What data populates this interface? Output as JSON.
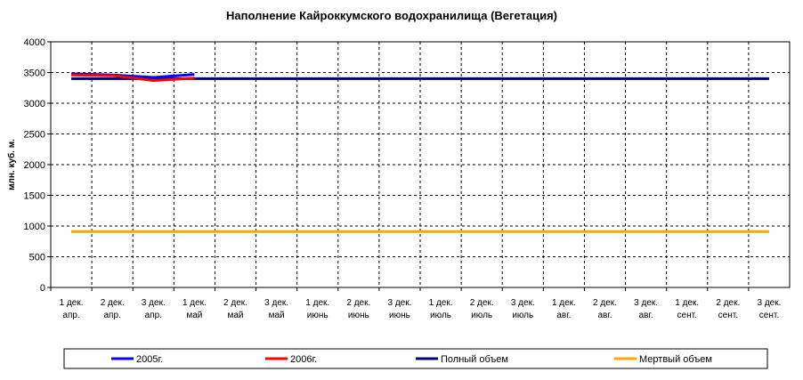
{
  "chart_data": {
    "type": "line",
    "title": "Наполнение Кайроккумского водохранилища (Вегетация)",
    "y_label": "млн. куб. м.",
    "categories": [
      [
        "1 дек.",
        "апр."
      ],
      [
        "2 дек.",
        "апр."
      ],
      [
        "3 дек.",
        "апр."
      ],
      [
        "1 дек.",
        "май"
      ],
      [
        "2 дек.",
        "май"
      ],
      [
        "3 дек.",
        "май"
      ],
      [
        "1 дек.",
        "июнь"
      ],
      [
        "2 дек.",
        "июнь"
      ],
      [
        "3 дек.",
        "июнь"
      ],
      [
        "1 дек.",
        "июль"
      ],
      [
        "2 дек.",
        "июль"
      ],
      [
        "3 дек.",
        "июль"
      ],
      [
        "1 дек.",
        "авг."
      ],
      [
        "2 дек.",
        "авг."
      ],
      [
        "3 дек.",
        "авг."
      ],
      [
        "1 дек.",
        "сент."
      ],
      [
        "2 дек.",
        "сент."
      ],
      [
        "3 дек.",
        "сент."
      ]
    ],
    "series": [
      {
        "name": "2005г.",
        "color": "#0000ff",
        "values": [
          3480,
          3460,
          3420,
          3470,
          null,
          null,
          null,
          null,
          null,
          null,
          null,
          null,
          null,
          null,
          null,
          null,
          null,
          null
        ]
      },
      {
        "name": "2006г.",
        "color": "#ff0000",
        "values": [
          3460,
          3450,
          3370,
          3410,
          null,
          null,
          null,
          null,
          null,
          null,
          null,
          null,
          null,
          null,
          null,
          null,
          null,
          null
        ]
      },
      {
        "name": "Полный объем",
        "color": "#000080",
        "values": [
          3400,
          3400,
          3400,
          3400,
          3400,
          3400,
          3400,
          3400,
          3400,
          3400,
          3400,
          3400,
          3400,
          3400,
          3400,
          3400,
          3400,
          3400
        ]
      },
      {
        "name": "Мертвый объем",
        "color": "#ffa500",
        "values": [
          910,
          910,
          910,
          910,
          910,
          910,
          910,
          910,
          910,
          910,
          910,
          910,
          910,
          910,
          910,
          910,
          910,
          910
        ]
      }
    ],
    "ylim": [
      0,
      4000
    ],
    "yticks": [
      0,
      500,
      1000,
      1500,
      2000,
      2500,
      3000,
      3500,
      4000
    ],
    "grid": true,
    "legend": "bottom"
  }
}
